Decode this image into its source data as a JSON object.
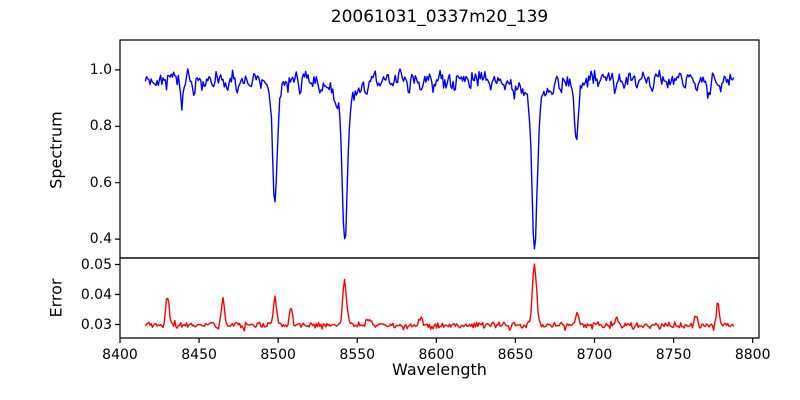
{
  "figure": {
    "background": "#ffffff",
    "title": "20061031_0337m20_139"
  },
  "axes": {
    "xlabel": "Wavelength",
    "xlim": [
      8400,
      8804
    ],
    "x_tick_values": [
      8400,
      8450,
      8500,
      8550,
      8600,
      8650,
      8700,
      8750,
      8800
    ],
    "x_tick_labels": [
      "8400",
      "8450",
      "8500",
      "8550",
      "8600",
      "8650",
      "8700",
      "8750",
      "8800"
    ],
    "top_panel": {
      "ylabel": "Spectrum",
      "ylim": [
        0.333,
        1.106
      ],
      "y_tick_values": [
        1.0,
        0.8,
        0.6,
        0.4
      ],
      "y_tick_labels": [
        "1.0",
        "0.8",
        "0.6",
        "0.4"
      ],
      "line_color": "#0000ff"
    },
    "bottom_panel": {
      "ylabel": "Error",
      "ylim": [
        0.0255,
        0.05217
      ],
      "y_tick_values": [
        0.05,
        0.04,
        0.03
      ],
      "y_tick_labels": [
        "0.05",
        "0.04",
        "0.03"
      ],
      "line_color": "#ff0000"
    },
    "spine_color": "#000000"
  },
  "chart_data": [
    {
      "type": "line",
      "series_name": "spectrum",
      "title": "20061031_0337m20_139",
      "xlabel": "Wavelength",
      "ylabel": "Spectrum",
      "color": "#0000ff",
      "x_range": [
        8416,
        8788
      ],
      "n_points": 500,
      "xlim": [
        8400,
        8804
      ],
      "ylim": [
        0.333,
        1.106
      ],
      "continuum": 0.972,
      "noise_sigma": 0.013,
      "seed": 42,
      "absorption_lines": [
        {
          "center": 8498.0,
          "min_value": 0.53,
          "core_depth": 0.4,
          "core_sigma": 1.4,
          "wing_depth": 0.045,
          "wing_sigma": 5
        },
        {
          "center": 8542.1,
          "min_value": 0.39,
          "core_depth": 0.5,
          "core_sigma": 1.6,
          "wing_depth": 0.085,
          "wing_sigma": 7
        },
        {
          "center": 8662.1,
          "min_value": 0.37,
          "core_depth": 0.52,
          "core_sigma": 1.6,
          "wing_depth": 0.085,
          "wing_sigma": 7
        },
        {
          "center": 8688.6,
          "min_value": 0.77,
          "core_depth": 0.175,
          "core_sigma": 1.3,
          "wing_depth": 0.025,
          "wing_sigma": 4
        }
      ],
      "weak_lines": [
        [
          8423,
          0.03
        ],
        [
          8439,
          0.095
        ],
        [
          8447,
          0.05
        ],
        [
          8452,
          0.04
        ],
        [
          8459,
          0.035
        ],
        [
          8468,
          0.05
        ],
        [
          8474,
          0.04
        ],
        [
          8482,
          0.03
        ],
        [
          8514,
          0.05
        ],
        [
          8521,
          0.04
        ],
        [
          8527,
          0.05
        ],
        [
          8536,
          0.04
        ],
        [
          8556,
          0.045
        ],
        [
          8564,
          0.03
        ],
        [
          8572,
          0.03
        ],
        [
          8583,
          0.05
        ],
        [
          8590,
          0.035
        ],
        [
          8598,
          0.05
        ],
        [
          8605,
          0.03
        ],
        [
          8611,
          0.04
        ],
        [
          8621,
          0.05
        ],
        [
          8634,
          0.035
        ],
        [
          8643,
          0.04
        ],
        [
          8649,
          0.05
        ],
        [
          8674,
          0.05
        ],
        [
          8679,
          0.04
        ],
        [
          8702,
          0.03
        ],
        [
          8713,
          0.05
        ],
        [
          8718,
          0.04
        ],
        [
          8727,
          0.035
        ],
        [
          8736,
          0.04
        ],
        [
          8747,
          0.03
        ],
        [
          8757,
          0.04
        ],
        [
          8764,
          0.03
        ],
        [
          8772,
          0.04
        ],
        [
          8779,
          0.03
        ]
      ],
      "weak_line_sigma": 0.9
    },
    {
      "type": "line",
      "series_name": "error",
      "ylabel": "Error",
      "color": "#ff0000",
      "x_range": [
        8416,
        8788
      ],
      "n_points": 500,
      "xlim": [
        8400,
        8804
      ],
      "ylim": [
        0.0255,
        0.05217
      ],
      "baseline": 0.0297,
      "noise_sigma": 0.00055,
      "seed": 137,
      "spikes": [
        [
          8430,
          0.01,
          1.0
        ],
        [
          8465,
          0.009,
          0.9
        ],
        [
          8498,
          0.0092,
          1.1
        ],
        [
          8508,
          0.0058,
          0.9
        ],
        [
          8542,
          0.015,
          1.2
        ],
        [
          8556,
          0.0028,
          0.9
        ],
        [
          8590,
          0.0028,
          0.9
        ],
        [
          8662,
          0.0208,
          1.3
        ],
        [
          8689,
          0.0042,
          1.0
        ],
        [
          8714,
          0.0028,
          0.9
        ],
        [
          8764,
          0.0035,
          0.9
        ],
        [
          8778,
          0.0085,
          0.8
        ]
      ]
    }
  ]
}
